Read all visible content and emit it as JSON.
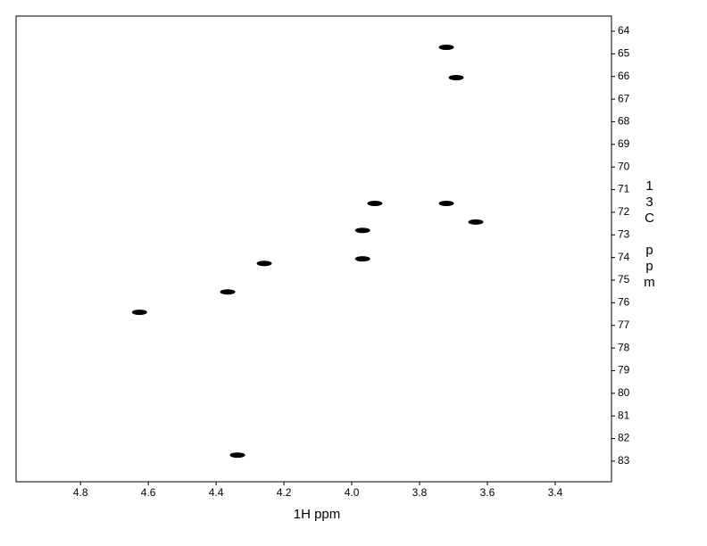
{
  "chart_data": {
    "type": "scatter",
    "xlabel": "1H ppm",
    "ylabel": "13C ppm",
    "xlim": [
      4.99,
      3.234
    ],
    "ylim": [
      63.33,
      83.91
    ],
    "xticks": [
      4.8,
      4.6,
      4.4,
      4.2,
      {
        "value": 4,
        "label": "4.0"
      },
      3.8,
      3.6,
      3.4
    ],
    "yticks": [
      64,
      65,
      66,
      67,
      68,
      69,
      70,
      71,
      72,
      73,
      74,
      75,
      76,
      77,
      78,
      79,
      80,
      81,
      82,
      83
    ],
    "series": [
      {
        "color": "#000000",
        "x": [
          3.721,
          3.692,
          3.932,
          3.721,
          3.634,
          3.968,
          3.968,
          4.258,
          4.366,
          4.626,
          4.337
        ],
        "values": [
          64.71,
          66.05,
          71.61,
          71.61,
          72.43,
          72.8,
          74.06,
          74.26,
          75.52,
          76.42,
          82.73
        ]
      }
    ]
  }
}
